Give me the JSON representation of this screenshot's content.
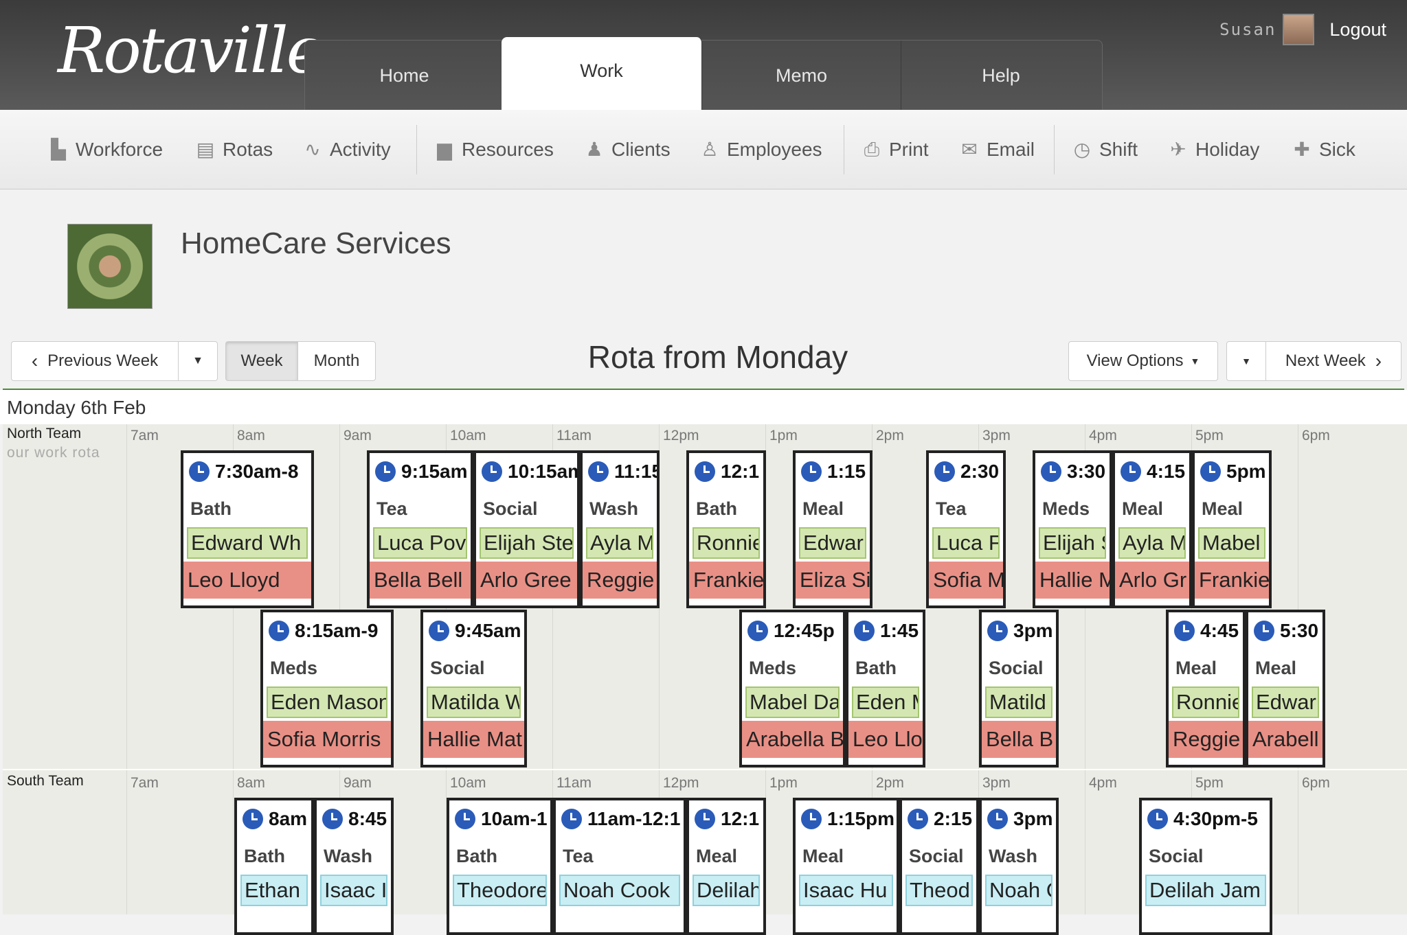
{
  "app": {
    "logo": "Rotaville"
  },
  "nav": {
    "tabs": [
      {
        "label": "Home"
      },
      {
        "label": "Work"
      },
      {
        "label": "Memo"
      },
      {
        "label": "Help"
      }
    ],
    "active": "Work"
  },
  "user": {
    "name": "Susan",
    "logout": "Logout"
  },
  "toolbar": {
    "items": [
      {
        "label": "Workforce",
        "icon": "factory-icon"
      },
      {
        "label": "Rotas",
        "icon": "clipboard-icon"
      },
      {
        "label": "Activity",
        "icon": "pulse-icon"
      },
      {
        "label": "Resources",
        "icon": "truck-icon"
      },
      {
        "label": "Clients",
        "icon": "client-icon"
      },
      {
        "label": "Employees",
        "icon": "person-icon"
      },
      {
        "label": "Print",
        "icon": "printer-icon"
      },
      {
        "label": "Email",
        "icon": "envelope-icon"
      },
      {
        "label": "Shift",
        "icon": "clock-icon"
      },
      {
        "label": "Holiday",
        "icon": "plane-icon"
      },
      {
        "label": "Sick",
        "icon": "medical-icon"
      }
    ]
  },
  "company": {
    "name": "HomeCare Services"
  },
  "controls": {
    "previous_week": "Previous Week",
    "week": "Week",
    "month": "Month",
    "title": "Rota from Monday",
    "view_options": "View Options",
    "next_week": "Next Week"
  },
  "day": {
    "label": "Monday 6th Feb"
  },
  "hours": [
    "7am",
    "8am",
    "9am",
    "10am",
    "11am",
    "12pm",
    "1pm",
    "2pm",
    "3pm",
    "4pm",
    "5pm",
    "6pm"
  ],
  "teams": [
    {
      "name": "North Team",
      "subtitle": "our work rota",
      "shifts": [
        {
          "time": "7:30am-8",
          "task": "Bath",
          "client": "Edward Wh",
          "staff": "Leo Lloyd"
        },
        {
          "time": "9:15am",
          "task": "Tea",
          "client": "Luca Pov",
          "staff": "Bella Bell"
        },
        {
          "time": "10:15am",
          "task": "Social",
          "client": "Elijah Ste",
          "staff": "Arlo Gree"
        },
        {
          "time": "11:15",
          "task": "Wash",
          "client": "Ayla M",
          "staff": "Reggie"
        },
        {
          "time": "12:1",
          "task": "Bath",
          "client": "Ronnie",
          "staff": "Frankie"
        },
        {
          "time": "1:15",
          "task": "Meal",
          "client": "Edwar",
          "staff": "Eliza Si"
        },
        {
          "time": "2:30",
          "task": "Tea",
          "client": "Luca F",
          "staff": "Sofia M"
        },
        {
          "time": "3:30",
          "task": "Meds",
          "client": "Elijah S",
          "staff": "Hallie M"
        },
        {
          "time": "4:15",
          "task": "Meal",
          "client": "Ayla M",
          "staff": "Arlo Gr"
        },
        {
          "time": "5pm",
          "task": "Meal",
          "client": "Mabel",
          "staff": "Frankie"
        },
        {
          "time": "8:15am-9",
          "task": "Meds",
          "client": "Eden Mason",
          "staff": "Sofia Morris"
        },
        {
          "time": "9:45am",
          "task": "Social",
          "client": "Matilda W",
          "staff": "Hallie Mat"
        },
        {
          "time": "12:45p",
          "task": "Meds",
          "client": "Mabel Da",
          "staff": "Arabella B"
        },
        {
          "time": "1:45",
          "task": "Bath",
          "client": "Eden M",
          "staff": "Leo Llo"
        },
        {
          "time": "3pm",
          "task": "Social",
          "client": "Matild",
          "staff": "Bella B"
        },
        {
          "time": "4:45",
          "task": "Meal",
          "client": "Ronnie",
          "staff": "Reggie"
        },
        {
          "time": "5:30",
          "task": "Meal",
          "client": "Edwar",
          "staff": "Arabell"
        }
      ]
    },
    {
      "name": "South Team",
      "shifts": [
        {
          "time": "8am",
          "task": "Bath",
          "client": "Ethan"
        },
        {
          "time": "8:45",
          "task": "Wash",
          "client": "Isaac I"
        },
        {
          "time": "10am-1",
          "task": "Bath",
          "client": "Theodore"
        },
        {
          "time": "11am-12:1",
          "task": "Tea",
          "client": "Noah Cook"
        },
        {
          "time": "12:1",
          "task": "Meal",
          "client": "Delilah"
        },
        {
          "time": "1:15pm",
          "task": "Meal",
          "client": "Isaac Hu"
        },
        {
          "time": "2:15",
          "task": "Social",
          "client": "Theod"
        },
        {
          "time": "3pm",
          "task": "Wash",
          "client": "Noah C"
        },
        {
          "time": "4:30pm-5",
          "task": "Social",
          "client": "Delilah Jam"
        }
      ]
    }
  ]
}
